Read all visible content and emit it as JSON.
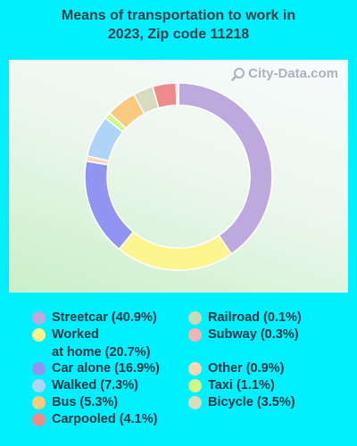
{
  "title_line1": "Means of transportation to work in",
  "title_line2": "2023, Zip code 11218",
  "watermark": "City-Data.com",
  "chart_data": {
    "type": "pie",
    "donut": true,
    "title": "Means of transportation to work in 2023, Zip code 11218",
    "slices": [
      {
        "label": "Streetcar (40.9%)",
        "value": 40.9,
        "color": "#bda9dd"
      },
      {
        "label": "Worked at home (20.7%)",
        "value": 20.7,
        "color": "#fdf58e"
      },
      {
        "label": "Car alone (16.9%)",
        "value": 16.9,
        "color": "#9294f2"
      },
      {
        "label": "Other (0.9%)",
        "value": 0.9,
        "color": "#f8d7b6"
      },
      {
        "label": "Walked (7.3%)",
        "value": 7.3,
        "color": "#aed5f8"
      },
      {
        "label": "Taxi (1.1%)",
        "value": 1.1,
        "color": "#d3f58c"
      },
      {
        "label": "Bus (5.3%)",
        "value": 5.3,
        "color": "#f9c97f"
      },
      {
        "label": "Bicycle (3.5%)",
        "value": 3.5,
        "color": "#d8dbbf"
      },
      {
        "label": "Carpooled (4.1%)",
        "value": 4.1,
        "color": "#ef8a8c"
      },
      {
        "label": "Subway (0.3%)",
        "value": 0.3,
        "color": "#f2b3b3"
      },
      {
        "label": "Railroad (0.1%)",
        "value": 0.1,
        "color": "#c6dbb1"
      }
    ],
    "legend": [
      {
        "label": "Streetcar (40.9%)",
        "color": "#bda9dd",
        "column": 0
      },
      {
        "label": "Worked\nat home (20.7%)",
        "color": "#fdf58e",
        "column": 0
      },
      {
        "label": "Car alone (16.9%)",
        "color": "#9294f2",
        "column": 0
      },
      {
        "label": "Walked (7.3%)",
        "color": "#aed5f8",
        "column": 0
      },
      {
        "label": "Bus (5.3%)",
        "color": "#f9c97f",
        "column": 0
      },
      {
        "label": "Carpooled (4.1%)",
        "color": "#ef8a8c",
        "column": 0
      },
      {
        "label": "Railroad (0.1%)",
        "color": "#c6dbb1",
        "column": 1
      },
      {
        "label": "Subway (0.3%)",
        "color": "#f2b3b3",
        "column": 1
      },
      {
        "label": "Other (0.9%)",
        "color": "#f8d7b6",
        "column": 1
      },
      {
        "label": "Taxi (1.1%)",
        "color": "#d3f58c",
        "column": 1
      },
      {
        "label": "Bicycle (3.5%)",
        "color": "#d8dbbf",
        "column": 1
      }
    ],
    "legend_placement": "bottom"
  }
}
